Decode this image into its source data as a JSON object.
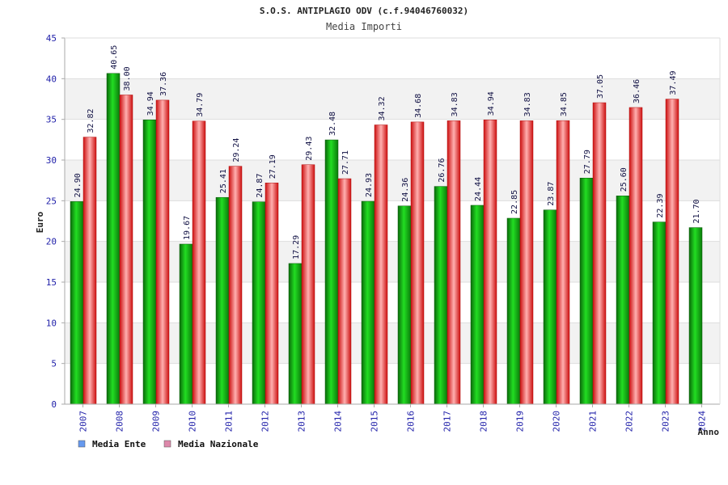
{
  "chart_data": {
    "type": "bar",
    "title": "S.O.S. ANTIPLAGIO ODV (c.f.94046760032)",
    "subtitle": "Media Importi",
    "xlabel": "Anno",
    "ylabel": "Euro",
    "ylim": [
      0,
      45
    ],
    "yticks": [
      "0",
      "5",
      "10",
      "15",
      "20",
      "25",
      "30",
      "35",
      "40",
      "45"
    ],
    "grid": true,
    "legend_position": "bottom-left",
    "categories": [
      "2007",
      "2008",
      "2009",
      "2010",
      "2011",
      "2012",
      "2013",
      "2014",
      "2015",
      "2016",
      "2017",
      "2018",
      "2019",
      "2020",
      "2021",
      "2022",
      "2023",
      "2024"
    ],
    "series": [
      {
        "name": "Media Ente",
        "legend_color": "#6699ee",
        "color": "#11aa11",
        "values": [
          24.9,
          40.65,
          34.94,
          19.67,
          25.41,
          24.87,
          17.29,
          32.48,
          24.93,
          24.36,
          26.76,
          24.44,
          22.85,
          23.87,
          27.79,
          25.6,
          22.39,
          21.7
        ],
        "labels": [
          "24.90",
          "40.65",
          "34.94",
          "19.67",
          "25.41",
          "24.87",
          "17.29",
          "32.48",
          "24.93",
          "24.36",
          "26.76",
          "24.44",
          "22.85",
          "23.87",
          "27.79",
          "25.60",
          "22.39",
          "21.70"
        ]
      },
      {
        "name": "Media Nazionale",
        "legend_color": "#dd88aa",
        "color": "#ee2222",
        "values": [
          32.82,
          38.0,
          37.36,
          34.79,
          29.24,
          27.19,
          29.43,
          27.71,
          34.32,
          34.68,
          34.83,
          34.94,
          34.83,
          34.85,
          37.05,
          36.46,
          37.49,
          null
        ],
        "labels": [
          "32.82",
          "38.00",
          "37.36",
          "34.79",
          "29.24",
          "27.19",
          "29.43",
          "27.71",
          "34.32",
          "34.68",
          "34.83",
          "34.94",
          "34.83",
          "34.85",
          "37.05",
          "36.46",
          "37.49",
          null
        ]
      }
    ]
  }
}
